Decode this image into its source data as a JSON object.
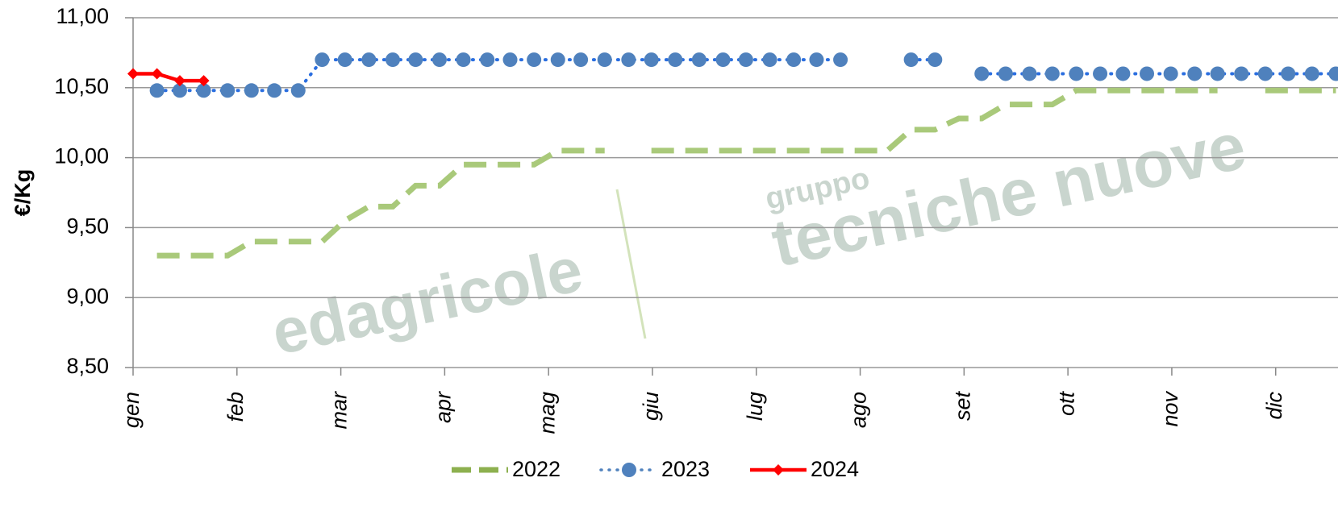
{
  "chart_data": {
    "type": "line",
    "y_label": "€/Kg",
    "watermark": [
      "edagricole",
      "gruppo",
      "tecniche nuove"
    ],
    "x": [
      0,
      0.23,
      0.45,
      0.68,
      0.91,
      1.14,
      1.36,
      1.59,
      1.82,
      2.04,
      2.27,
      2.5,
      2.72,
      2.95,
      3.18,
      3.41,
      3.63,
      3.86,
      4.09,
      4.31,
      4.54,
      4.77,
      4.99,
      5.22,
      5.45,
      5.68,
      5.9,
      6.13,
      6.36,
      6.58,
      6.81,
      7.04,
      7.26,
      7.49,
      7.72,
      7.95,
      8.17,
      8.4,
      8.63,
      8.85,
      9.08,
      9.31,
      9.53,
      9.76,
      9.99,
      10.22,
      10.44,
      10.67,
      10.9,
      11.12,
      11.35,
      11.58
    ],
    "xlim": [
      0,
      11.6
    ],
    "xticks": [
      {
        "value": 0,
        "label": "gen"
      },
      {
        "value": 1,
        "label": "feb"
      },
      {
        "value": 2,
        "label": "mar"
      },
      {
        "value": 3,
        "label": "apr"
      },
      {
        "value": 4,
        "label": "mag"
      },
      {
        "value": 5,
        "label": "giu"
      },
      {
        "value": 6,
        "label": "lug"
      },
      {
        "value": 7,
        "label": "ago"
      },
      {
        "value": 8,
        "label": "set"
      },
      {
        "value": 9,
        "label": "ott"
      },
      {
        "value": 10,
        "label": "nov"
      },
      {
        "value": 11,
        "label": "dic"
      }
    ],
    "ylim": [
      8.5,
      11
    ],
    "yticks": [
      {
        "value": 8.5,
        "label": "8,50"
      },
      {
        "value": 9,
        "label": "9,00"
      },
      {
        "value": 9.5,
        "label": "9,50"
      },
      {
        "value": 10,
        "label": "10,00"
      },
      {
        "value": 10.5,
        "label": "10,50"
      },
      {
        "value": 11,
        "label": "11,00"
      }
    ],
    "grid": true,
    "legend": "bottom",
    "series": [
      {
        "name": "2022",
        "color": "#a9c97a",
        "style": "dashed",
        "values": [
          null,
          9.3,
          9.3,
          9.3,
          9.3,
          9.4,
          9.4,
          9.4,
          9.4,
          9.55,
          9.65,
          9.65,
          9.8,
          9.8,
          9.95,
          9.95,
          9.95,
          9.95,
          10.05,
          10.05,
          10.05,
          null,
          10.05,
          10.05,
          10.05,
          10.05,
          10.05,
          10.05,
          10.05,
          10.05,
          10.05,
          10.05,
          10.05,
          10.2,
          10.2,
          10.28,
          10.28,
          10.38,
          10.38,
          10.38,
          10.48,
          10.48,
          10.48,
          10.48,
          10.48,
          10.48,
          10.48,
          null,
          10.48,
          10.48,
          10.48,
          10.48
        ]
      },
      {
        "name": "2023",
        "color": "#4f81bd",
        "style": "dotted",
        "values": [
          null,
          10.48,
          10.48,
          10.48,
          10.48,
          10.48,
          10.48,
          10.48,
          10.7,
          10.7,
          10.7,
          10.7,
          10.7,
          10.7,
          10.7,
          10.7,
          10.7,
          10.7,
          10.7,
          10.7,
          10.7,
          10.7,
          10.7,
          10.7,
          10.7,
          10.7,
          10.7,
          10.7,
          10.7,
          10.7,
          10.7,
          null,
          null,
          10.7,
          10.7,
          null,
          10.6,
          10.6,
          10.6,
          10.6,
          10.6,
          10.6,
          10.6,
          10.6,
          10.6,
          10.6,
          10.6,
          10.6,
          10.6,
          10.6,
          10.6,
          10.6
        ]
      },
      {
        "name": "2024",
        "color": "#ff0000",
        "style": "solid",
        "values": [
          10.6,
          10.6,
          10.55,
          10.55,
          null,
          null,
          null,
          null,
          null,
          null,
          null,
          null,
          null,
          null,
          null,
          null,
          null,
          null,
          null,
          null,
          null,
          null,
          null,
          null,
          null,
          null,
          null,
          null,
          null,
          null,
          null,
          null,
          null,
          null,
          null,
          null,
          null,
          null,
          null,
          null,
          null,
          null,
          null,
          null,
          null,
          null,
          null,
          null,
          null,
          null,
          null,
          null
        ]
      }
    ]
  }
}
